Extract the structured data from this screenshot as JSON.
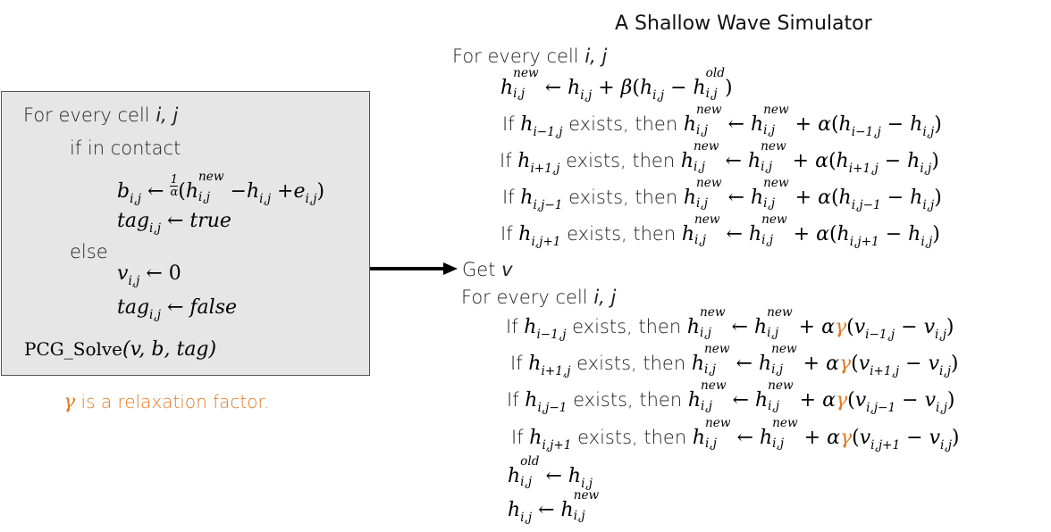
{
  "title": "A Shallow Wave Simulator",
  "left_box": {
    "line1_text": "For every cell ",
    "line1_vars": "i, j",
    "if_contact": "if in contact",
    "else": "else",
    "pcg_solve": "PCG_Solve",
    "pcg_args": "(v, b, tag)",
    "true_val": "true",
    "false_val": "false"
  },
  "note": {
    "gamma": "γ",
    "text": " is a relaxation factor."
  },
  "right": {
    "for_every_cell": "For every cell ",
    "ij": "i, j",
    "exists_then": " exists, then ",
    "if": "If ",
    "get": "Get ",
    "v": "v"
  },
  "colors": {
    "gamma": "#e07a24",
    "box_bg": "#e6e6e6",
    "box_border": "#555555"
  }
}
